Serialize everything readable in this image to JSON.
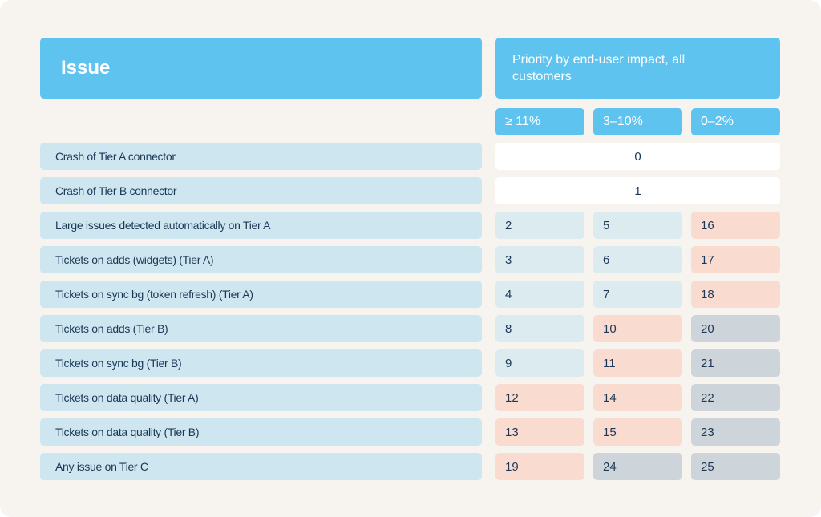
{
  "header": {
    "issue": "Issue",
    "priority": "Priority by end-user impact, all customers"
  },
  "columns": [
    "≥ 11%",
    "3–10%",
    "0–2%"
  ],
  "rows": [
    {
      "label": "Crash of Tier A connector",
      "cells": [
        {
          "value": 0,
          "color": "#ffffff"
        }
      ]
    },
    {
      "label": "Crash of Tier B connector",
      "cells": [
        {
          "value": 1,
          "color": "#ffffff"
        }
      ]
    },
    {
      "label": "Large issues detected automatically on Tier A",
      "cells": [
        {
          "value": 2,
          "color": "#dcebf0"
        },
        {
          "value": 5,
          "color": "#dcebf0"
        },
        {
          "value": 16,
          "color": "#f9dbd0"
        }
      ]
    },
    {
      "label": "Tickets on adds (widgets) (Tier A)",
      "cells": [
        {
          "value": 3,
          "color": "#dcebf0"
        },
        {
          "value": 6,
          "color": "#dcebf0"
        },
        {
          "value": 17,
          "color": "#f9dbd0"
        }
      ]
    },
    {
      "label": "Tickets on sync bg (token refresh) (Tier A)",
      "cells": [
        {
          "value": 4,
          "color": "#dcebf0"
        },
        {
          "value": 7,
          "color": "#dcebf0"
        },
        {
          "value": 18,
          "color": "#f9dbd0"
        }
      ]
    },
    {
      "label": "Tickets on adds (Tier B)",
      "cells": [
        {
          "value": 8,
          "color": "#dcebf0"
        },
        {
          "value": 10,
          "color": "#f9dbd0"
        },
        {
          "value": 20,
          "color": "#cdd4da"
        }
      ]
    },
    {
      "label": "Tickets on sync bg (Tier B)",
      "cells": [
        {
          "value": 9,
          "color": "#dcebf0"
        },
        {
          "value": 11,
          "color": "#f9dbd0"
        },
        {
          "value": 21,
          "color": "#cdd4da"
        }
      ]
    },
    {
      "label": "Tickets on data quality (Tier A)",
      "cells": [
        {
          "value": 12,
          "color": "#f9dbd0"
        },
        {
          "value": 14,
          "color": "#f9dbd0"
        },
        {
          "value": 22,
          "color": "#cdd4da"
        }
      ]
    },
    {
      "label": "Tickets on data quality (Tier B)",
      "cells": [
        {
          "value": 13,
          "color": "#f9dbd0"
        },
        {
          "value": 15,
          "color": "#f9dbd0"
        },
        {
          "value": 23,
          "color": "#cdd4da"
        }
      ]
    },
    {
      "label": "Any issue on Tier C",
      "cells": [
        {
          "value": 19,
          "color": "#f9dbd0"
        },
        {
          "value": 24,
          "color": "#cdd4da"
        },
        {
          "value": 25,
          "color": "#cdd4da"
        }
      ]
    }
  ]
}
